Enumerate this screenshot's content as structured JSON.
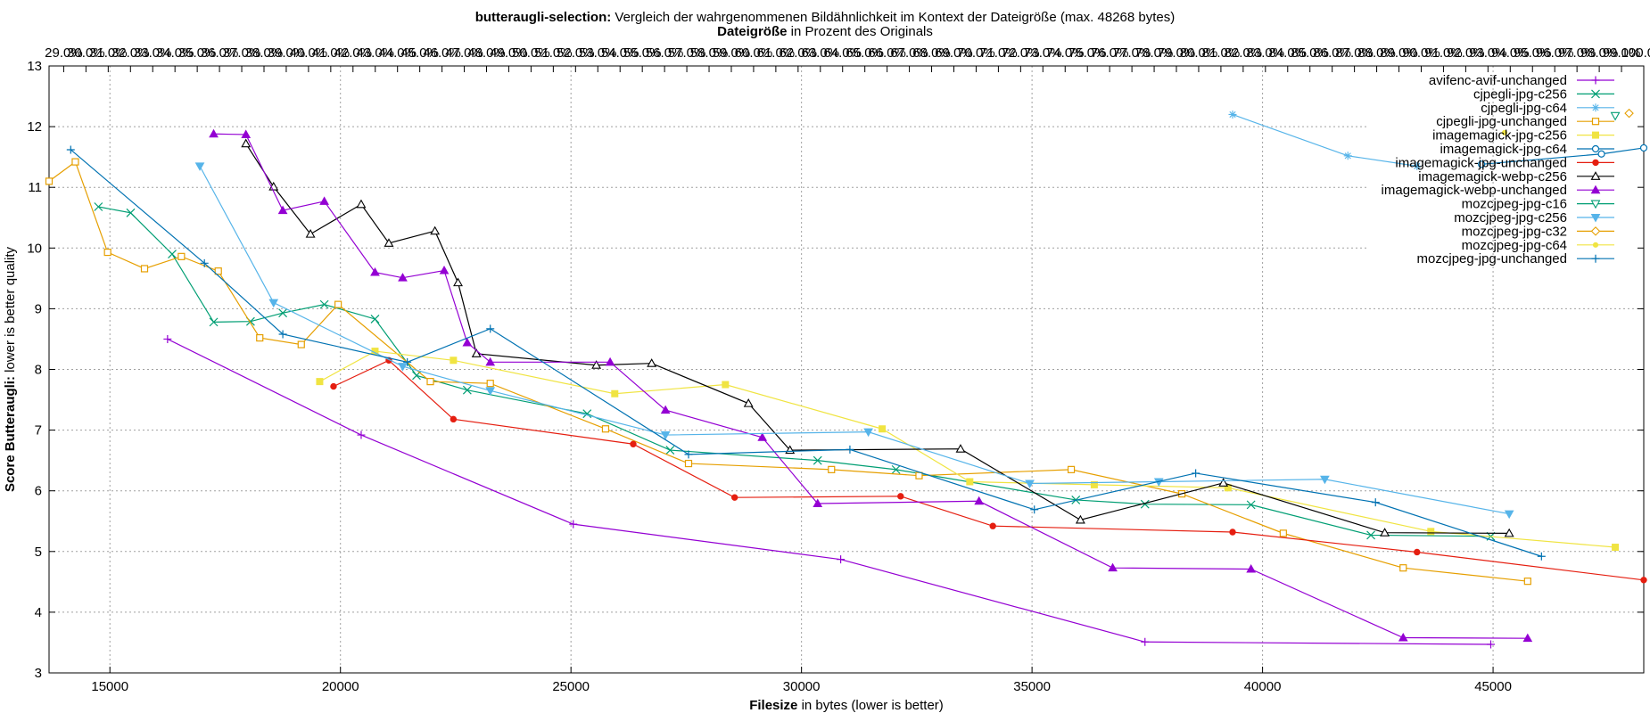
{
  "chart_data": {
    "type": "line",
    "title": {
      "bold": "butteraugli-selection:",
      "rest": " Vergleich der wahrgenommenen Bildähnlichkeit im Kontext der Dateigröße (max. 48268 bytes)"
    },
    "x2label": {
      "bold": "Dateigröße",
      "rest": " in Prozent des Originals"
    },
    "xlabel": {
      "bold": "Filesize",
      "rest": " in bytes (lower is better)"
    },
    "ylabel": {
      "bold": "Score Butteraugli:",
      "rest": " lower is better quality"
    },
    "xlim": [
      13680,
      48268
    ],
    "ylim": [
      3,
      13
    ],
    "xticks": [
      "15000",
      "20000",
      "25000",
      "30000",
      "35000",
      "40000",
      "45000"
    ],
    "yticks": [
      "3",
      "4",
      "5",
      "6",
      "7",
      "8",
      "9",
      "10",
      "11",
      "12",
      "13"
    ],
    "top_axis": {
      "max_bytes": 48268,
      "percent_start": 16,
      "percent_end": 100,
      "step": 1,
      "decimals": 1,
      "suffix": "%"
    },
    "grid": true,
    "legend_position": "top-right",
    "series": [
      {
        "name": "avifenc-avif-unchanged",
        "color": "#9400d3",
        "marker": "plus",
        "points": [
          [
            16250,
            8.5
          ],
          [
            20450,
            6.92
          ],
          [
            25050,
            5.45
          ],
          [
            30850,
            4.87
          ],
          [
            37450,
            3.51
          ],
          [
            44950,
            3.47
          ]
        ]
      },
      {
        "name": "cjpegli-jpg-c256",
        "color": "#009e73",
        "marker": "cross",
        "points": [
          [
            14750,
            10.68
          ],
          [
            15450,
            10.58
          ],
          [
            16350,
            9.9
          ],
          [
            17250,
            8.78
          ],
          [
            18050,
            8.79
          ],
          [
            18750,
            8.93
          ],
          [
            19650,
            9.07
          ],
          [
            20750,
            8.83
          ],
          [
            21650,
            7.9
          ],
          [
            22750,
            7.66
          ],
          [
            25350,
            7.27
          ],
          [
            27150,
            6.67
          ],
          [
            30350,
            6.5
          ],
          [
            32050,
            6.35
          ],
          [
            35950,
            5.85
          ],
          [
            37450,
            5.78
          ],
          [
            39750,
            5.77
          ],
          [
            42350,
            5.27
          ],
          [
            44950,
            5.25
          ]
        ]
      },
      {
        "name": "cjpegli-jpg-c64",
        "color": "#56b4e9",
        "marker": "star",
        "points": [
          [
            39350,
            12.2
          ],
          [
            41850,
            11.52
          ],
          [
            43350,
            11.35
          ]
        ]
      },
      {
        "name": "cjpegli-jpg-unchanged",
        "color": "#e69f00",
        "marker": "square",
        "points": [
          [
            13680,
            11.1
          ],
          [
            14250,
            11.42
          ],
          [
            14950,
            9.93
          ],
          [
            15750,
            9.66
          ],
          [
            16550,
            9.86
          ],
          [
            17350,
            9.62
          ],
          [
            18250,
            8.52
          ],
          [
            19150,
            8.41
          ],
          [
            19950,
            9.07
          ],
          [
            21950,
            7.8
          ],
          [
            23250,
            7.77
          ],
          [
            25750,
            7.02
          ],
          [
            27550,
            6.45
          ],
          [
            30650,
            6.35
          ],
          [
            32550,
            6.25
          ],
          [
            35850,
            6.35
          ],
          [
            38250,
            5.95
          ],
          [
            40450,
            5.3
          ],
          [
            43050,
            4.73
          ],
          [
            45750,
            4.51
          ]
        ]
      },
      {
        "name": "imagemagick-jpg-c256",
        "color": "#f0e442",
        "marker": "filled-square",
        "points": [
          [
            19550,
            7.8
          ],
          [
            20750,
            8.3
          ],
          [
            22450,
            8.15
          ],
          [
            25950,
            7.6
          ],
          [
            28350,
            7.75
          ],
          [
            31750,
            7.02
          ],
          [
            33650,
            6.15
          ],
          [
            36350,
            6.1
          ],
          [
            39250,
            6.05
          ],
          [
            43650,
            5.33
          ],
          [
            47650,
            5.07
          ]
        ]
      },
      {
        "name": "imagemagick-jpg-c64",
        "color": "#0072b2",
        "marker": "circle",
        "points": [
          [
            44750,
            11.38
          ],
          [
            47350,
            11.55
          ],
          [
            48268,
            11.65
          ]
        ]
      },
      {
        "name": "imagemagick-jpg-unchanged",
        "color": "#e51e10",
        "marker": "filled-circle",
        "points": [
          [
            19850,
            7.72
          ],
          [
            21050,
            8.15
          ],
          [
            22450,
            7.18
          ],
          [
            26350,
            6.77
          ],
          [
            28550,
            5.89
          ],
          [
            32150,
            5.91
          ],
          [
            34150,
            5.42
          ],
          [
            39350,
            5.32
          ],
          [
            43350,
            4.99
          ],
          [
            48268,
            4.53
          ]
        ]
      },
      {
        "name": "imagemagick-webp-c256",
        "color": "#000000",
        "marker": "triangle",
        "points": [
          [
            17950,
            11.72
          ],
          [
            18550,
            11.01
          ],
          [
            19350,
            10.23
          ],
          [
            20450,
            10.72
          ],
          [
            21050,
            10.08
          ],
          [
            22050,
            10.28
          ],
          [
            22550,
            9.43
          ],
          [
            22950,
            8.26
          ],
          [
            25550,
            8.07
          ],
          [
            26750,
            8.1
          ],
          [
            28850,
            7.44
          ],
          [
            29750,
            6.67
          ],
          [
            33450,
            6.69
          ],
          [
            36050,
            5.52
          ],
          [
            39150,
            6.13
          ],
          [
            42650,
            5.31
          ],
          [
            45350,
            5.3
          ]
        ]
      },
      {
        "name": "imagemagick-webp-unchanged",
        "color": "#9400d3",
        "marker": "filled-triangle",
        "points": [
          [
            17250,
            11.88
          ],
          [
            17950,
            11.87
          ],
          [
            18750,
            10.62
          ],
          [
            19650,
            10.77
          ],
          [
            20750,
            9.6
          ],
          [
            21350,
            9.51
          ],
          [
            22250,
            9.63
          ],
          [
            22750,
            8.44
          ],
          [
            23250,
            8.12
          ],
          [
            25850,
            8.12
          ],
          [
            27050,
            7.33
          ],
          [
            29150,
            6.88
          ],
          [
            30350,
            5.79
          ],
          [
            33850,
            5.83
          ],
          [
            36750,
            4.73
          ],
          [
            39750,
            4.71
          ],
          [
            43050,
            3.58
          ],
          [
            45750,
            3.57
          ]
        ]
      },
      {
        "name": "mozcjpeg-jpg-c16",
        "color": "#009e73",
        "marker": "inverted-triangle",
        "points": [
          [
            47650,
            12.18
          ]
        ]
      },
      {
        "name": "mozcjpeg-jpg-c256",
        "color": "#56b4e9",
        "marker": "filled-inverted-triangle",
        "points": [
          [
            16950,
            11.35
          ],
          [
            18550,
            9.1
          ],
          [
            21350,
            8.05
          ],
          [
            23250,
            7.65
          ],
          [
            27050,
            6.92
          ],
          [
            31450,
            6.97
          ],
          [
            34950,
            6.12
          ],
          [
            37750,
            6.15
          ],
          [
            41350,
            6.19
          ],
          [
            45350,
            5.62
          ]
        ]
      },
      {
        "name": "mozcjpeg-jpg-c32",
        "color": "#e69f00",
        "marker": "diamond",
        "points": [
          [
            47950,
            12.22
          ]
        ]
      },
      {
        "name": "mozcjpeg-jpg-c64",
        "color": "#f0e442",
        "marker": "filled-circle-small",
        "points": [
          [
            45250,
            11.9
          ]
        ]
      },
      {
        "name": "mozcjpeg-jpg-unchanged",
        "color": "#0072b2",
        "marker": "plus",
        "points": [
          [
            14150,
            11.62
          ],
          [
            17050,
            9.75
          ],
          [
            18750,
            8.58
          ],
          [
            21450,
            8.12
          ],
          [
            23250,
            8.67
          ],
          [
            27550,
            6.6
          ],
          [
            31050,
            6.68
          ],
          [
            35050,
            5.69
          ],
          [
            38550,
            6.29
          ],
          [
            42450,
            5.81
          ],
          [
            46050,
            4.92
          ]
        ]
      }
    ]
  }
}
